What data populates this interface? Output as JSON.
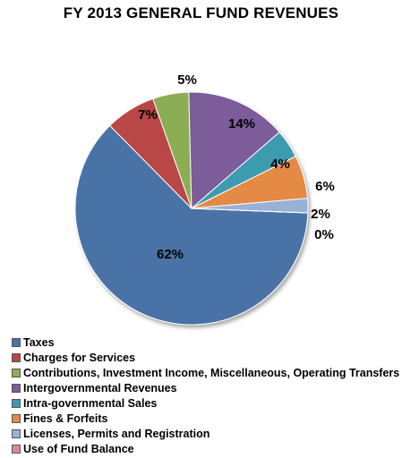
{
  "chart_data": {
    "type": "pie",
    "title": "FY 2013 GENERAL FUND REVENUES",
    "categories": [
      "Taxes",
      "Charges for Services",
      "Contributions, Investment Income, Miscellaneous, Operating Transfers",
      "Intergovernmental Revenues",
      "Intra-governmental Sales",
      "Fines & Forfeits",
      "Licenses, Permits and Registration",
      "Use of Fund Balance"
    ],
    "values": [
      62,
      7,
      5,
      14,
      4,
      6,
      2,
      0
    ],
    "data_labels": [
      "62%",
      "7%",
      "5%",
      "14%",
      "4%",
      "6%",
      "2%",
      "0%"
    ],
    "colors": [
      "#4a73a6",
      "#b84745",
      "#8bae54",
      "#7b5c99",
      "#3d9bb0",
      "#e48a45",
      "#98b1d4",
      "#d88c8c"
    ],
    "legend_position": "bottom-left"
  }
}
